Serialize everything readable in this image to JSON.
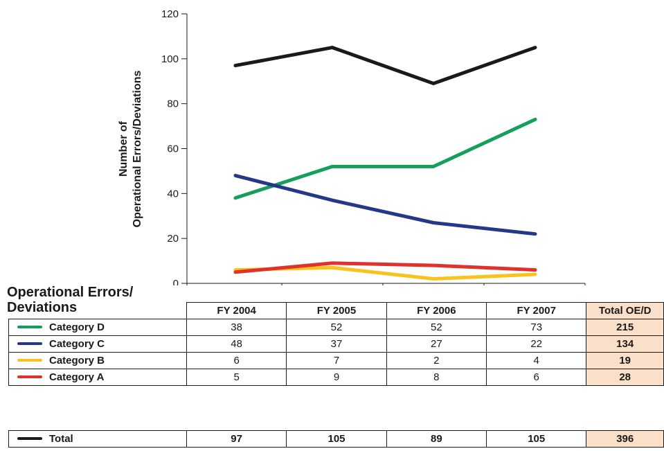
{
  "chart_data": {
    "type": "line",
    "title": "",
    "ylabel_lines": [
      "Number of",
      "Operational Errors/Deviations"
    ],
    "xlabel": "",
    "categories": [
      "FY 2004",
      "FY 2005",
      "FY 2006",
      "FY 2007"
    ],
    "ylim": [
      0,
      120
    ],
    "yticks": [
      0,
      20,
      40,
      60,
      80,
      100,
      120
    ],
    "grid": false,
    "series": [
      {
        "name": "Category D",
        "color": "#14a05a",
        "values": [
          38,
          52,
          52,
          73
        ]
      },
      {
        "name": "Category C",
        "color": "#253888",
        "values": [
          48,
          37,
          27,
          22
        ]
      },
      {
        "name": "Category B",
        "color": "#f7c31c",
        "values": [
          6,
          7,
          2,
          4
        ]
      },
      {
        "name": "Category A",
        "color": "#e0322c",
        "values": [
          5,
          9,
          8,
          6
        ]
      }
    ],
    "total": {
      "name": "Total",
      "color": "#1a1a1a",
      "values": [
        97,
        105,
        89,
        105
      ]
    }
  },
  "table": {
    "title_line1": "Operational Errors/",
    "title_line2": "Deviations",
    "headers": [
      "FY 2004",
      "FY 2005",
      "FY 2006",
      "FY 2007",
      "Total OE/D"
    ],
    "rows": [
      {
        "label": "Category D",
        "color": "#14a05a",
        "values": [
          "38",
          "52",
          "52",
          "73"
        ],
        "total": "215"
      },
      {
        "label": "Category C",
        "color": "#253888",
        "values": [
          "48",
          "37",
          "27",
          "22"
        ],
        "total": "134"
      },
      {
        "label": "Category B",
        "color": "#f7c31c",
        "values": [
          "6",
          "7",
          "2",
          "4"
        ],
        "total": "19"
      },
      {
        "label": "Category A",
        "color": "#e0322c",
        "values": [
          "5",
          "9",
          "8",
          "6"
        ],
        "total": "28"
      }
    ],
    "total_row": {
      "label": "Total",
      "color": "#1a1a1a",
      "values": [
        "97",
        "105",
        "89",
        "105"
      ],
      "total": "396"
    }
  }
}
